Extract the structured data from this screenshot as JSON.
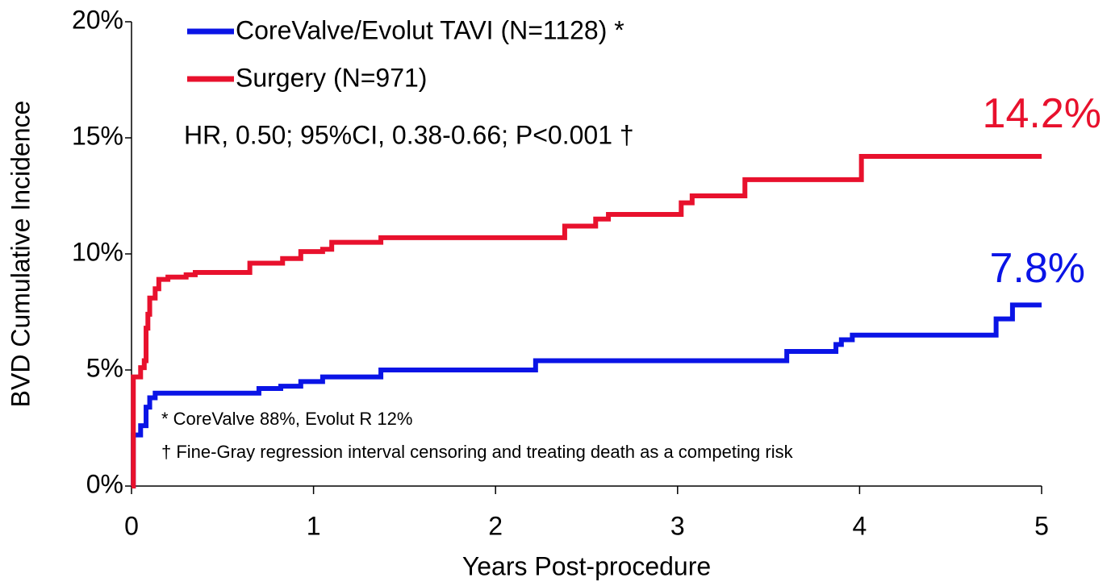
{
  "chart_data": {
    "type": "step-line",
    "xlabel": "Years Post-procedure",
    "ylabel": "BVD Cumulative Incidence",
    "xlim": [
      0,
      5
    ],
    "xticks": [
      0,
      1,
      2,
      3,
      4,
      5
    ],
    "ylim": [
      0,
      20
    ],
    "yticks": [
      {
        "value": 0,
        "label": "0%"
      },
      {
        "value": 5,
        "label": "5%"
      },
      {
        "value": 10,
        "label": "10%"
      },
      {
        "value": 15,
        "label": "15%"
      },
      {
        "value": 20,
        "label": "20%"
      }
    ],
    "series": [
      {
        "name": "CoreValve/Evolut TAVI (N=1128) *",
        "color": "#0a14e6",
        "x": [
          0,
          0.01,
          0.05,
          0.08,
          0.1,
          0.13,
          0.7,
          0.82,
          0.93,
          1.05,
          1.37,
          2.22,
          3.6,
          3.87,
          3.9,
          3.96,
          4.75,
          4.84,
          5
        ],
        "values": [
          0,
          2.2,
          2.6,
          3.4,
          3.8,
          4.0,
          4.2,
          4.3,
          4.5,
          4.7,
          5.0,
          5.4,
          5.8,
          6.1,
          6.3,
          6.5,
          7.2,
          7.8,
          7.8
        ],
        "value_labels": [
          null,
          null,
          null,
          null,
          null,
          null,
          null,
          null,
          null,
          null,
          null,
          null,
          null,
          null,
          null,
          null,
          null,
          null,
          "7.8%"
        ]
      },
      {
        "name": "Surgery (N=971)",
        "color": "#e8112d",
        "x": [
          0,
          0.01,
          0.05,
          0.07,
          0.08,
          0.09,
          0.1,
          0.13,
          0.15,
          0.2,
          0.3,
          0.35,
          0.65,
          0.83,
          0.93,
          1.05,
          1.1,
          1.37,
          2.38,
          2.55,
          2.62,
          3.02,
          3.08,
          3.37,
          4.01,
          5
        ],
        "values": [
          0,
          4.7,
          5.1,
          5.4,
          6.8,
          7.4,
          8.1,
          8.5,
          8.9,
          9.0,
          9.1,
          9.2,
          9.6,
          9.8,
          10.1,
          10.2,
          10.5,
          10.7,
          11.2,
          11.5,
          11.7,
          12.2,
          12.5,
          13.2,
          14.2,
          14.2
        ],
        "value_labels": [
          null,
          null,
          null,
          null,
          null,
          null,
          null,
          null,
          null,
          null,
          null,
          null,
          null,
          null,
          null,
          null,
          null,
          null,
          null,
          null,
          null,
          null,
          null,
          null,
          null,
          "14.2%"
        ]
      }
    ],
    "annotations": [
      "HR, 0.50; 95%CI, 0.38-0.66; P<0.001 †",
      "* CoreValve 88%, Evolut R 12%",
      "† Fine-Gray regression interval censoring and treating death as a competing risk"
    ]
  }
}
